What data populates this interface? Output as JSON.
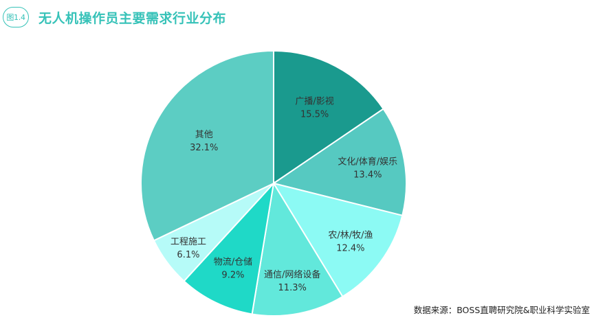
{
  "header": {
    "figure_number": "图1.4",
    "title": "无人机操作员主要需求行业分布"
  },
  "source": "数据来源：BOSS直聘研究院&职业科学实验室",
  "chart_data": {
    "type": "pie",
    "start_angle_deg": 0,
    "direction": "clockwise",
    "slices": [
      {
        "label": "广播/影视",
        "value": 15.5,
        "value_label": "15.5%",
        "color": "#1a9a8e"
      },
      {
        "label": "文化/体育/娱乐",
        "value": 13.4,
        "value_label": "13.4%",
        "color": "#56c9c1"
      },
      {
        "label": "农/林/牧/渔",
        "value": 12.4,
        "value_label": "12.4%",
        "color": "#8cfaf4"
      },
      {
        "label": "通信/网络设备",
        "value": 11.3,
        "value_label": "11.3%",
        "color": "#62e8db"
      },
      {
        "label": "物流/仓储",
        "value": 9.2,
        "value_label": "9.2%",
        "color": "#1fd9c7"
      },
      {
        "label": "工程施工",
        "value": 6.1,
        "value_label": "6.1%",
        "color": "#b6fbf8"
      },
      {
        "label": "其他",
        "value": 32.1,
        "value_label": "32.1%",
        "color": "#5ccdc3"
      }
    ]
  }
}
